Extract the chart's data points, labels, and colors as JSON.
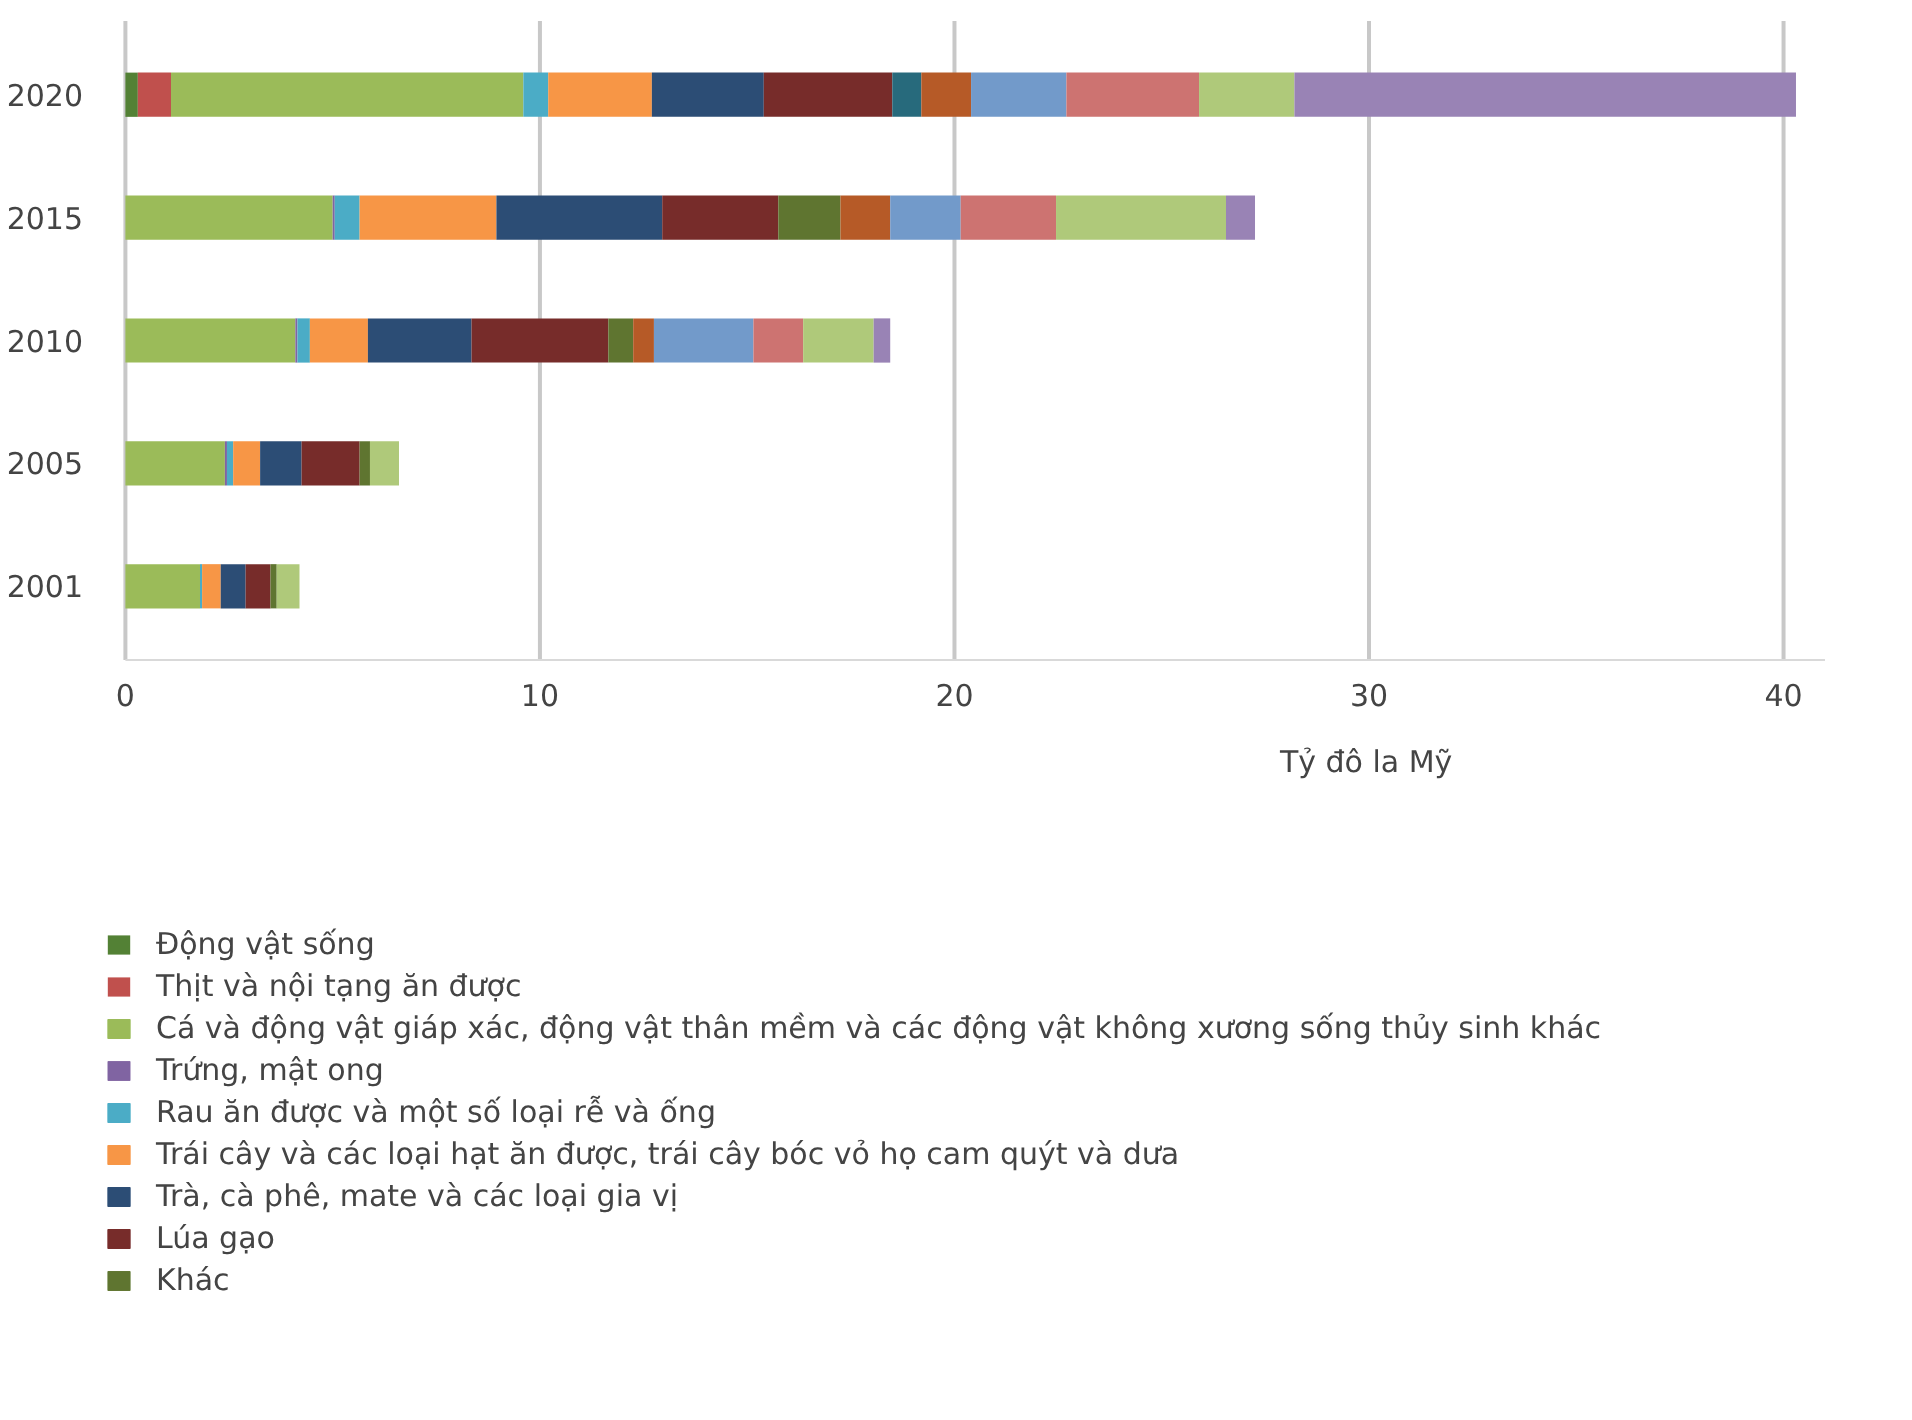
{
  "chart_data": {
    "type": "bar",
    "orientation": "horizontal",
    "stacked": true,
    "categories": [
      "2020",
      "2015",
      "2010",
      "2005",
      "2001"
    ],
    "xlabel": "Tỷ đô la Mỹ",
    "xlim": [
      0,
      41
    ],
    "xticks": [
      0,
      10,
      20,
      30,
      40
    ],
    "grid": "x",
    "legend": "bottom left",
    "series": [
      {
        "name": "Động vật sống",
        "color": "#538135",
        "values": [
          0.3,
          null,
          null,
          null,
          null
        ]
      },
      {
        "name": "Thịt và nội tạng ăn được",
        "color": "#c0504d",
        "values": [
          0.8,
          null,
          null,
          null,
          null
        ]
      },
      {
        "name": "Cá và động vật giáp xác, động vật thân mềm và các động vật không xương sống thủy sinh khác",
        "color": "#9bbb59",
        "values": [
          8.5,
          5.0,
          4.1,
          2.4,
          1.8
        ]
      },
      {
        "name": "Trứng, mật ong",
        "color": "#8064a2",
        "values": [
          null,
          0.05,
          0.05,
          0.05,
          null
        ]
      },
      {
        "name": "Rau ăn được và một số loại rễ và ống",
        "color": "#4bacc6",
        "values": [
          0.6,
          0.6,
          0.3,
          0.15,
          0.05
        ]
      },
      {
        "name": "Trái cây và các loại hạt ăn được, trái cây bóc vỏ họ cam quýt và dưa",
        "color": "#f79646",
        "values": [
          2.5,
          3.3,
          1.4,
          0.65,
          0.45
        ]
      },
      {
        "name": "Trà, cà phê, mate và các loại gia vị",
        "color": "#2c4d75",
        "values": [
          2.7,
          4.0,
          2.5,
          1.0,
          0.6
        ]
      },
      {
        "name": "Lúa gạo",
        "color": "#772c2a",
        "values": [
          3.1,
          2.8,
          3.3,
          1.4,
          0.6
        ]
      },
      {
        "name": "Khác",
        "color": "#5f7530",
        "values": [
          null,
          1.5,
          0.6,
          0.25,
          0.15
        ]
      },
      {
        "color": "#276a7c",
        "values": [
          0.7,
          null,
          null,
          null,
          null
        ]
      },
      {
        "color": "#b65a27",
        "values": [
          1.2,
          1.2,
          0.5,
          null,
          null
        ]
      },
      {
        "color": "#729aca",
        "values": [
          2.3,
          1.7,
          2.4,
          null,
          null
        ]
      },
      {
        "color": "#cd7371",
        "values": [
          3.2,
          2.3,
          1.2,
          null,
          null
        ]
      },
      {
        "color": "#afc97a",
        "values": [
          2.3,
          4.1,
          1.7,
          0.7,
          0.55
        ]
      },
      {
        "color": "#9983b5",
        "values": [
          12.1,
          0.7,
          0.4,
          null,
          null
        ]
      }
    ]
  }
}
